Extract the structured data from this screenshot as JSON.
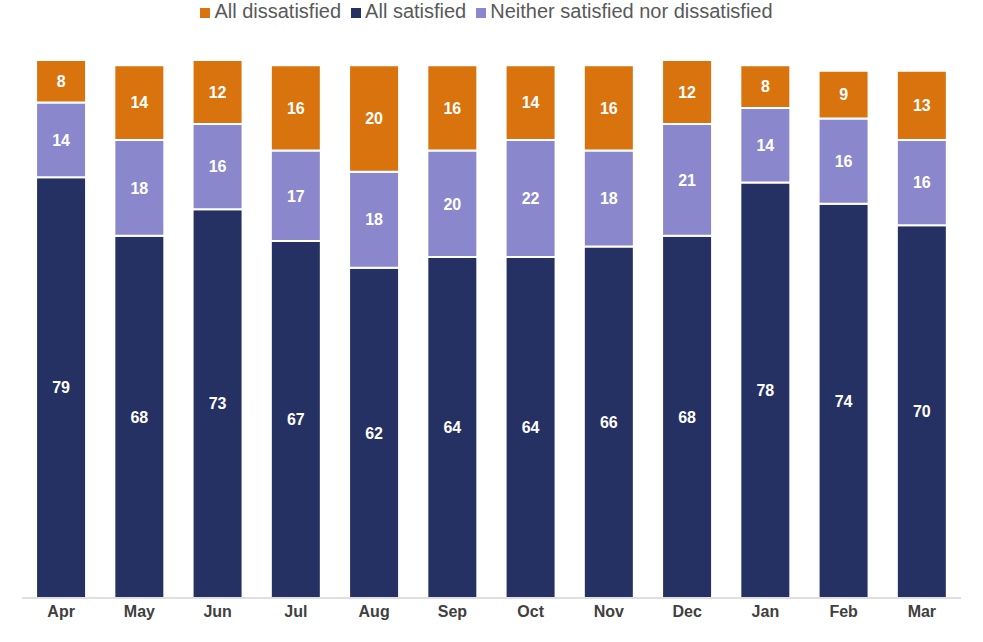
{
  "chart_data": {
    "type": "bar",
    "stacked": true,
    "data_labels": true,
    "legend": "top",
    "tick_labels": "x",
    "grid": false,
    "categories": [
      "Apr",
      "May",
      "Jun",
      "Jul",
      "Aug",
      "Sep",
      "Oct",
      "Nov",
      "Dec",
      "Jan",
      "Feb",
      "Mar"
    ],
    "ylim": [
      0,
      101
    ],
    "series": [
      {
        "name": "All satisfied",
        "color": "#253063",
        "values": [
          79,
          68,
          73,
          67,
          62,
          64,
          64,
          66,
          68,
          78,
          74,
          70
        ]
      },
      {
        "name": "Neither satisfied nor dissatisfied",
        "color": "#8a87cc",
        "values": [
          14,
          18,
          16,
          17,
          18,
          20,
          22,
          18,
          21,
          14,
          16,
          16
        ]
      },
      {
        "name": "All dissatisfied",
        "color": "#d9730d",
        "values": [
          8,
          14,
          12,
          16,
          20,
          16,
          14,
          16,
          12,
          8,
          9,
          13
        ]
      }
    ]
  }
}
